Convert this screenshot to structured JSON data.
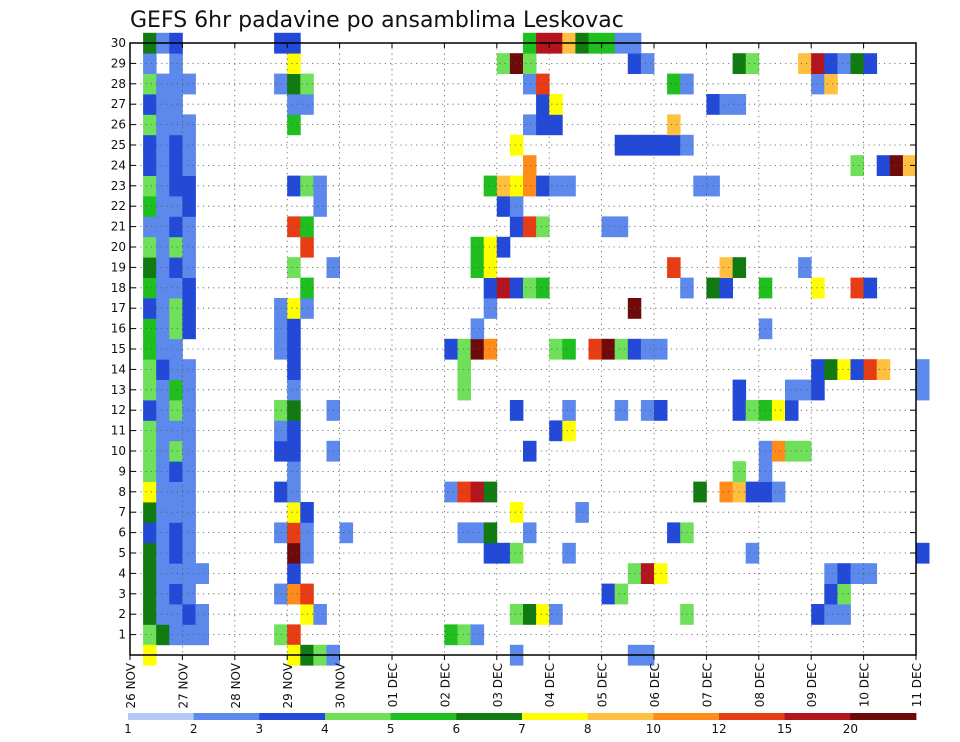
{
  "chart_data": {
    "type": "heatmap",
    "title": "GEFS 6hr padavine po ansamblima Leskovac",
    "xlabel": "",
    "ylabel": "",
    "x_ticks": [
      "26 NOV",
      "27 NOV",
      "28 NOV",
      "29 NOV",
      "30 NOV",
      "01 DEC",
      "02 DEC",
      "03 DEC",
      "04 DEC",
      "05 DEC",
      "06 DEC",
      "07 DEC",
      "08 DEC",
      "09 DEC",
      "10 DEC",
      "11 DEC"
    ],
    "y_ticks": [
      "1",
      "2",
      "3",
      "4",
      "5",
      "6",
      "7",
      "8",
      "9",
      "10",
      "11",
      "12",
      "13",
      "14",
      "15",
      "16",
      "17",
      "18",
      "19",
      "20",
      "21",
      "22",
      "23",
      "24",
      "25",
      "26",
      "27",
      "28",
      "29",
      "30"
    ],
    "x_range_days": [
      0,
      15
    ],
    "y_range": [
      0,
      30
    ],
    "time_step_hours": 6,
    "grid": "dotted",
    "legend_placement": "bottom",
    "color_levels": [
      1,
      2,
      3,
      4,
      5,
      6,
      7,
      8,
      10,
      12,
      15,
      20
    ],
    "colors": [
      "#b3c8f5",
      "#5c89eb",
      "#2249d8",
      "#6ee05a",
      "#1fbf1f",
      "#117a11",
      "#ffff00",
      "#ffc040",
      "#ff8c1a",
      "#e83c14",
      "#b4141e",
      "#6e0a0a"
    ],
    "cells": [
      [
        1,
        1,
        3
      ],
      [
        1,
        2,
        5
      ],
      [
        1,
        3,
        1
      ],
      [
        1,
        4,
        1
      ],
      [
        1,
        5,
        1
      ],
      [
        1,
        11,
        3
      ],
      [
        1,
        12,
        9
      ],
      [
        1,
        24,
        4
      ],
      [
        1,
        25,
        3
      ],
      [
        1,
        26,
        1
      ],
      [
        2,
        1,
        5
      ],
      [
        2,
        2,
        1
      ],
      [
        2,
        3,
        1
      ],
      [
        2,
        4,
        2
      ],
      [
        2,
        5,
        1
      ],
      [
        2,
        13,
        6
      ],
      [
        2,
        14,
        1
      ],
      [
        2,
        29,
        3
      ],
      [
        2,
        30,
        5
      ],
      [
        2,
        31,
        6
      ],
      [
        2,
        32,
        1
      ],
      [
        2,
        42,
        3
      ],
      [
        2,
        52,
        2
      ],
      [
        2,
        53,
        1
      ],
      [
        2,
        54,
        1
      ],
      [
        3,
        1,
        5
      ],
      [
        3,
        2,
        1
      ],
      [
        3,
        3,
        2
      ],
      [
        3,
        4,
        1
      ],
      [
        3,
        11,
        1
      ],
      [
        3,
        12,
        8
      ],
      [
        3,
        13,
        9
      ],
      [
        3,
        36,
        2
      ],
      [
        3,
        37,
        3
      ],
      [
        3,
        53,
        2
      ],
      [
        3,
        54,
        3
      ],
      [
        4,
        1,
        5
      ],
      [
        4,
        2,
        1
      ],
      [
        4,
        3,
        1
      ],
      [
        4,
        4,
        1
      ],
      [
        4,
        5,
        1
      ],
      [
        4,
        12,
        2
      ],
      [
        4,
        38,
        3
      ],
      [
        4,
        39,
        10
      ],
      [
        4,
        40,
        6
      ],
      [
        4,
        53,
        1
      ],
      [
        4,
        54,
        2
      ],
      [
        4,
        55,
        1
      ],
      [
        4,
        56,
        1
      ],
      [
        5,
        1,
        5
      ],
      [
        5,
        2,
        1
      ],
      [
        5,
        3,
        2
      ],
      [
        5,
        4,
        1
      ],
      [
        5,
        12,
        11
      ],
      [
        5,
        13,
        1
      ],
      [
        5,
        27,
        2
      ],
      [
        5,
        28,
        2
      ],
      [
        5,
        29,
        3
      ],
      [
        5,
        33,
        1
      ],
      [
        5,
        47,
        1
      ],
      [
        5,
        60,
        2
      ],
      [
        6,
        1,
        2
      ],
      [
        6,
        2,
        1
      ],
      [
        6,
        3,
        2
      ],
      [
        6,
        4,
        1
      ],
      [
        6,
        11,
        1
      ],
      [
        6,
        12,
        9
      ],
      [
        6,
        13,
        1
      ],
      [
        6,
        16,
        1
      ],
      [
        6,
        25,
        1
      ],
      [
        6,
        26,
        1
      ],
      [
        6,
        27,
        5
      ],
      [
        6,
        30,
        1
      ],
      [
        6,
        41,
        2
      ],
      [
        6,
        42,
        3
      ],
      [
        7,
        1,
        5
      ],
      [
        7,
        2,
        1
      ],
      [
        7,
        3,
        1
      ],
      [
        7,
        4,
        1
      ],
      [
        7,
        12,
        6
      ],
      [
        7,
        13,
        2
      ],
      [
        7,
        29,
        6
      ],
      [
        7,
        34,
        1
      ],
      [
        8,
        1,
        6
      ],
      [
        8,
        2,
        1
      ],
      [
        8,
        3,
        1
      ],
      [
        8,
        4,
        1
      ],
      [
        8,
        11,
        2
      ],
      [
        8,
        12,
        1
      ],
      [
        8,
        24,
        1
      ],
      [
        8,
        25,
        9
      ],
      [
        8,
        26,
        10
      ],
      [
        8,
        27,
        5
      ],
      [
        8,
        43,
        5
      ],
      [
        8,
        45,
        8
      ],
      [
        8,
        46,
        7
      ],
      [
        8,
        47,
        2
      ],
      [
        8,
        48,
        2
      ],
      [
        8,
        49,
        1
      ],
      [
        9,
        1,
        3
      ],
      [
        9,
        2,
        1
      ],
      [
        9,
        3,
        2
      ],
      [
        9,
        4,
        1
      ],
      [
        9,
        12,
        1
      ],
      [
        9,
        46,
        3
      ],
      [
        9,
        48,
        1
      ],
      [
        10,
        1,
        3
      ],
      [
        10,
        2,
        1
      ],
      [
        10,
        3,
        3
      ],
      [
        10,
        4,
        1
      ],
      [
        10,
        11,
        2
      ],
      [
        10,
        12,
        2
      ],
      [
        10,
        15,
        1
      ],
      [
        10,
        30,
        2
      ],
      [
        10,
        48,
        1
      ],
      [
        10,
        49,
        8
      ],
      [
        10,
        50,
        3
      ],
      [
        10,
        51,
        3
      ],
      [
        11,
        1,
        3
      ],
      [
        11,
        2,
        1
      ],
      [
        11,
        3,
        1
      ],
      [
        11,
        4,
        1
      ],
      [
        11,
        11,
        1
      ],
      [
        11,
        12,
        2
      ],
      [
        11,
        32,
        2
      ],
      [
        11,
        33,
        6
      ],
      [
        12,
        1,
        2
      ],
      [
        12,
        2,
        1
      ],
      [
        12,
        3,
        3
      ],
      [
        12,
        4,
        1
      ],
      [
        12,
        11,
        3
      ],
      [
        12,
        12,
        5
      ],
      [
        12,
        15,
        1
      ],
      [
        12,
        29,
        2
      ],
      [
        12,
        33,
        1
      ],
      [
        12,
        37,
        1
      ],
      [
        12,
        39,
        1
      ],
      [
        12,
        40,
        2
      ],
      [
        12,
        46,
        2
      ],
      [
        12,
        47,
        3
      ],
      [
        12,
        48,
        4
      ],
      [
        12,
        49,
        6
      ],
      [
        12,
        50,
        2
      ],
      [
        13,
        1,
        3
      ],
      [
        13,
        2,
        1
      ],
      [
        13,
        3,
        4
      ],
      [
        13,
        4,
        1
      ],
      [
        13,
        12,
        1
      ],
      [
        13,
        25,
        3
      ],
      [
        13,
        46,
        2
      ],
      [
        13,
        50,
        1
      ],
      [
        13,
        51,
        1
      ],
      [
        13,
        52,
        2
      ],
      [
        13,
        60,
        1
      ],
      [
        14,
        1,
        3
      ],
      [
        14,
        2,
        2
      ],
      [
        14,
        3,
        1
      ],
      [
        14,
        4,
        1
      ],
      [
        14,
        12,
        2
      ],
      [
        14,
        25,
        3
      ],
      [
        14,
        52,
        2
      ],
      [
        14,
        53,
        5
      ],
      [
        14,
        54,
        6
      ],
      [
        14,
        55,
        2
      ],
      [
        14,
        56,
        9
      ],
      [
        14,
        57,
        7
      ],
      [
        14,
        60,
        1
      ],
      [
        15,
        1,
        4
      ],
      [
        15,
        2,
        1
      ],
      [
        15,
        3,
        1
      ],
      [
        15,
        11,
        1
      ],
      [
        15,
        12,
        2
      ],
      [
        15,
        24,
        2
      ],
      [
        15,
        25,
        3
      ],
      [
        15,
        26,
        11
      ],
      [
        15,
        27,
        8
      ],
      [
        15,
        32,
        3
      ],
      [
        15,
        33,
        4
      ],
      [
        15,
        35,
        9
      ],
      [
        15,
        36,
        11
      ],
      [
        15,
        37,
        3
      ],
      [
        15,
        38,
        2
      ],
      [
        15,
        39,
        1
      ],
      [
        15,
        40,
        1
      ],
      [
        16,
        1,
        4
      ],
      [
        16,
        2,
        1
      ],
      [
        16,
        3,
        3
      ],
      [
        16,
        4,
        2
      ],
      [
        16,
        11,
        1
      ],
      [
        16,
        12,
        2
      ],
      [
        16,
        26,
        1
      ],
      [
        16,
        48,
        1
      ],
      [
        17,
        1,
        2
      ],
      [
        17,
        2,
        1
      ],
      [
        17,
        3,
        3
      ],
      [
        17,
        4,
        2
      ],
      [
        17,
        11,
        1
      ],
      [
        17,
        12,
        6
      ],
      [
        17,
        13,
        1
      ],
      [
        17,
        27,
        1
      ],
      [
        17,
        38,
        11
      ],
      [
        18,
        1,
        4
      ],
      [
        18,
        2,
        1
      ],
      [
        18,
        3,
        1
      ],
      [
        18,
        4,
        2
      ],
      [
        18,
        13,
        4
      ],
      [
        18,
        27,
        2
      ],
      [
        18,
        28,
        10
      ],
      [
        18,
        29,
        2
      ],
      [
        18,
        30,
        3
      ],
      [
        18,
        31,
        4
      ],
      [
        18,
        42,
        1
      ],
      [
        18,
        44,
        5
      ],
      [
        18,
        45,
        2
      ],
      [
        18,
        48,
        4
      ],
      [
        18,
        52,
        6
      ],
      [
        18,
        55,
        9
      ],
      [
        18,
        56,
        2
      ],
      [
        19,
        1,
        5
      ],
      [
        19,
        2,
        1
      ],
      [
        19,
        3,
        2
      ],
      [
        19,
        4,
        1
      ],
      [
        19,
        12,
        3
      ],
      [
        19,
        15,
        1
      ],
      [
        19,
        26,
        4
      ],
      [
        19,
        27,
        6
      ],
      [
        19,
        41,
        9
      ],
      [
        19,
        45,
        7
      ],
      [
        19,
        46,
        5
      ],
      [
        19,
        51,
        1
      ],
      [
        20,
        1,
        3
      ],
      [
        20,
        2,
        1
      ],
      [
        20,
        3,
        3
      ],
      [
        20,
        4,
        1
      ],
      [
        20,
        13,
        9
      ],
      [
        20,
        26,
        4
      ],
      [
        20,
        27,
        6
      ],
      [
        20,
        28,
        2
      ],
      [
        21,
        1,
        1
      ],
      [
        21,
        2,
        1
      ],
      [
        21,
        3,
        2
      ],
      [
        21,
        4,
        1
      ],
      [
        21,
        12,
        9
      ],
      [
        21,
        13,
        4
      ],
      [
        21,
        29,
        2
      ],
      [
        21,
        30,
        9
      ],
      [
        21,
        31,
        3
      ],
      [
        21,
        36,
        1
      ],
      [
        21,
        37,
        1
      ],
      [
        22,
        1,
        4
      ],
      [
        22,
        2,
        1
      ],
      [
        22,
        3,
        1
      ],
      [
        22,
        4,
        2
      ],
      [
        22,
        14,
        1
      ],
      [
        22,
        28,
        2
      ],
      [
        22,
        29,
        1
      ],
      [
        23,
        1,
        3
      ],
      [
        23,
        2,
        1
      ],
      [
        23,
        3,
        2
      ],
      [
        23,
        4,
        2
      ],
      [
        23,
        12,
        2
      ],
      [
        23,
        13,
        3
      ],
      [
        23,
        14,
        1
      ],
      [
        23,
        27,
        4
      ],
      [
        23,
        28,
        7
      ],
      [
        23,
        29,
        6
      ],
      [
        23,
        30,
        8
      ],
      [
        23,
        31,
        2
      ],
      [
        23,
        32,
        1
      ],
      [
        23,
        33,
        1
      ],
      [
        23,
        43,
        1
      ],
      [
        23,
        44,
        1
      ],
      [
        24,
        1,
        2
      ],
      [
        24,
        2,
        1
      ],
      [
        24,
        3,
        2
      ],
      [
        24,
        4,
        1
      ],
      [
        24,
        30,
        8
      ],
      [
        24,
        55,
        3
      ],
      [
        24,
        57,
        2
      ],
      [
        24,
        58,
        11
      ],
      [
        24,
        59,
        7
      ],
      [
        25,
        1,
        2
      ],
      [
        25,
        2,
        1
      ],
      [
        25,
        3,
        2
      ],
      [
        25,
        4,
        1
      ],
      [
        25,
        29,
        6
      ],
      [
        25,
        37,
        2
      ],
      [
        25,
        38,
        2
      ],
      [
        25,
        39,
        2
      ],
      [
        25,
        40,
        2
      ],
      [
        25,
        41,
        2
      ],
      [
        25,
        42,
        1
      ],
      [
        26,
        1,
        3
      ],
      [
        26,
        2,
        1
      ],
      [
        26,
        3,
        1
      ],
      [
        26,
        4,
        1
      ],
      [
        26,
        12,
        4
      ],
      [
        26,
        30,
        1
      ],
      [
        26,
        31,
        2
      ],
      [
        26,
        32,
        2
      ],
      [
        26,
        41,
        7
      ],
      [
        27,
        1,
        2
      ],
      [
        27,
        2,
        1
      ],
      [
        27,
        3,
        1
      ],
      [
        27,
        12,
        1
      ],
      [
        27,
        13,
        1
      ],
      [
        27,
        31,
        2
      ],
      [
        27,
        32,
        6
      ],
      [
        27,
        44,
        2
      ],
      [
        27,
        45,
        1
      ],
      [
        27,
        46,
        1
      ],
      [
        28,
        1,
        3
      ],
      [
        28,
        2,
        1
      ],
      [
        28,
        3,
        1
      ],
      [
        28,
        4,
        1
      ],
      [
        28,
        11,
        1
      ],
      [
        28,
        12,
        5
      ],
      [
        28,
        13,
        3
      ],
      [
        28,
        30,
        1
      ],
      [
        28,
        31,
        9
      ],
      [
        28,
        41,
        4
      ],
      [
        28,
        42,
        1
      ],
      [
        28,
        52,
        1
      ],
      [
        28,
        53,
        7
      ],
      [
        29,
        1,
        1
      ],
      [
        29,
        3,
        1
      ],
      [
        29,
        12,
        6
      ],
      [
        29,
        28,
        3
      ],
      [
        29,
        29,
        11
      ],
      [
        29,
        30,
        3
      ],
      [
        29,
        38,
        2
      ],
      [
        29,
        39,
        1
      ],
      [
        29,
        46,
        5
      ],
      [
        29,
        47,
        3
      ],
      [
        29,
        51,
        7
      ],
      [
        29,
        52,
        10
      ],
      [
        29,
        53,
        2
      ],
      [
        29,
        54,
        1
      ],
      [
        29,
        55,
        5
      ],
      [
        29,
        56,
        2
      ],
      [
        30,
        1,
        5
      ],
      [
        30,
        2,
        1
      ],
      [
        30,
        3,
        2
      ],
      [
        30,
        11,
        2
      ],
      [
        30,
        12,
        2
      ],
      [
        30,
        30,
        4
      ],
      [
        30,
        31,
        10
      ],
      [
        30,
        32,
        10
      ],
      [
        30,
        33,
        7
      ],
      [
        30,
        34,
        5
      ],
      [
        30,
        35,
        4
      ],
      [
        30,
        36,
        4
      ],
      [
        30,
        37,
        1
      ],
      [
        30,
        38,
        1
      ],
      [
        0,
        1,
        6
      ],
      [
        0,
        12,
        6
      ],
      [
        0,
        13,
        5
      ],
      [
        0,
        14,
        3
      ],
      [
        0,
        15,
        1
      ],
      [
        0,
        29,
        1
      ],
      [
        0,
        38,
        1
      ],
      [
        0,
        39,
        1
      ]
    ]
  }
}
